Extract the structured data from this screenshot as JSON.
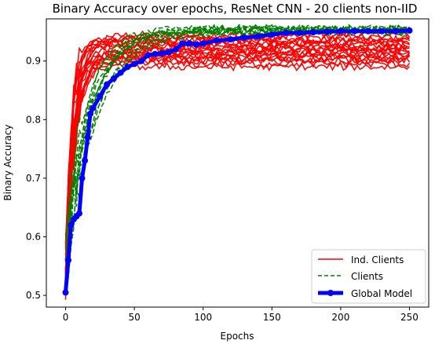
{
  "chart_data": {
    "type": "line",
    "title": "Binary Accuracy over epochs, ResNet CNN - 20 clients non-IID",
    "xlabel": "Epochs",
    "ylabel": "Binary Accuracy",
    "xlim": [
      -14,
      264
    ],
    "ylim": [
      0.48,
      0.972
    ],
    "xticks": [
      0,
      50,
      100,
      150,
      200,
      250
    ],
    "xtick_labels": [
      "0",
      "50",
      "100",
      "150",
      "200",
      "250"
    ],
    "yticks": [
      0.5,
      0.6,
      0.7,
      0.8,
      0.9
    ],
    "ytick_labels": [
      "0.5",
      "0.6",
      "0.7",
      "0.8",
      "0.9"
    ],
    "grid": false,
    "legend_position": "lower-right",
    "legend": [
      {
        "label": "Ind. Clients",
        "style": "solid",
        "color": "#ff0000"
      },
      {
        "label": "Clients",
        "style": "dashed",
        "color": "#008000"
      },
      {
        "label": "Global Model",
        "style": "thick-marker",
        "color": "#0000ff"
      }
    ],
    "ind_clients_final": [
      0.945,
      0.94,
      0.938,
      0.935,
      0.933,
      0.93,
      0.928,
      0.925,
      0.922,
      0.92,
      0.918,
      0.915,
      0.912,
      0.91,
      0.908,
      0.905,
      0.902,
      0.9,
      0.895,
      0.89
    ],
    "clients_final": [
      0.957,
      0.956,
      0.955,
      0.955,
      0.954,
      0.953,
      0.952,
      0.951,
      0.95,
      0.948
    ],
    "global_model": {
      "x": [
        0,
        2,
        4,
        6,
        8,
        10,
        12,
        14,
        16,
        18,
        20,
        25,
        30,
        35,
        40,
        45,
        50,
        55,
        60,
        65,
        70,
        75,
        80,
        85,
        90,
        95,
        100,
        110,
        120,
        130,
        140,
        150,
        160,
        170,
        180,
        190,
        200,
        210,
        220,
        230,
        240,
        250
      ],
      "y": [
        0.505,
        0.56,
        0.62,
        0.63,
        0.635,
        0.64,
        0.7,
        0.73,
        0.77,
        0.81,
        0.82,
        0.84,
        0.86,
        0.87,
        0.88,
        0.89,
        0.895,
        0.9,
        0.91,
        0.912,
        0.913,
        0.915,
        0.92,
        0.93,
        0.93,
        0.928,
        0.93,
        0.935,
        0.937,
        0.94,
        0.942,
        0.945,
        0.948,
        0.948,
        0.949,
        0.95,
        0.951,
        0.951,
        0.951,
        0.951,
        0.951,
        0.952
      ]
    }
  }
}
